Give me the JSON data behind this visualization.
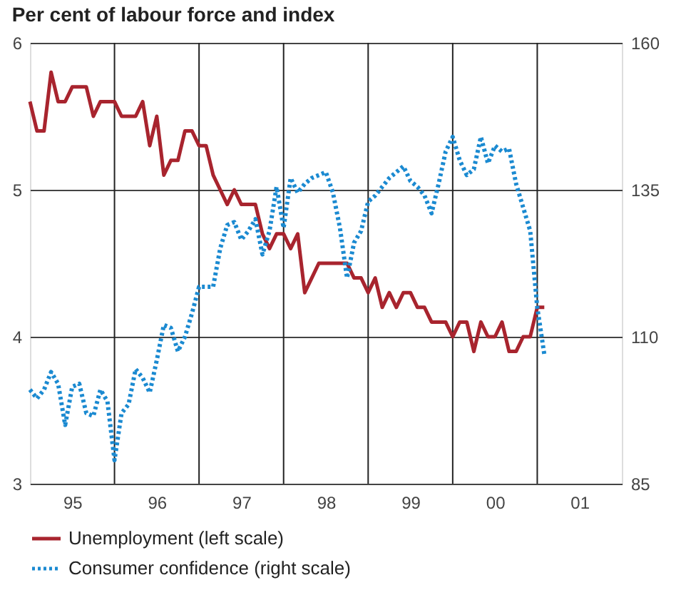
{
  "chart_data": {
    "type": "line",
    "title": "Per cent of labour force and index",
    "xlim": [
      "1995-01",
      "2002-01"
    ],
    "xticks": [
      {
        "value": "1995-07",
        "label": "95"
      },
      {
        "value": "1996-01",
        "label": null
      },
      {
        "value": "1996-07",
        "label": "96"
      },
      {
        "value": "1997-01",
        "label": null
      },
      {
        "value": "1997-07",
        "label": "97"
      },
      {
        "value": "1998-01",
        "label": null
      },
      {
        "value": "1998-07",
        "label": "98"
      },
      {
        "value": "1999-01",
        "label": null
      },
      {
        "value": "1999-07",
        "label": "99"
      },
      {
        "value": "2000-01",
        "label": null
      },
      {
        "value": "2000-07",
        "label": "00"
      },
      {
        "value": "2001-01",
        "label": null
      },
      {
        "value": "2001-07",
        "label": "01"
      }
    ],
    "ylim": [
      3,
      6
    ],
    "yticks": [
      3,
      4,
      5,
      6
    ],
    "y2lim": [
      85,
      160
    ],
    "y2ticks": [
      85,
      110,
      135,
      160
    ],
    "grid": true,
    "legend": "bottom",
    "marker": "none",
    "x": [
      "1995-01",
      "1995-02",
      "1995-03",
      "1995-04",
      "1995-05",
      "1995-06",
      "1995-07",
      "1995-08",
      "1995-09",
      "1995-10",
      "1995-11",
      "1995-12",
      "1996-01",
      "1996-02",
      "1996-03",
      "1996-04",
      "1996-05",
      "1996-06",
      "1996-07",
      "1996-08",
      "1996-09",
      "1996-10",
      "1996-11",
      "1996-12",
      "1997-01",
      "1997-02",
      "1997-03",
      "1997-04",
      "1997-05",
      "1997-06",
      "1997-07",
      "1997-08",
      "1997-09",
      "1997-10",
      "1997-11",
      "1997-12",
      "1998-01",
      "1998-02",
      "1998-03",
      "1998-04",
      "1998-05",
      "1998-06",
      "1998-07",
      "1998-08",
      "1998-09",
      "1998-10",
      "1998-11",
      "1998-12",
      "1999-01",
      "1999-02",
      "1999-03",
      "1999-04",
      "1999-05",
      "1999-06",
      "1999-07",
      "1999-08",
      "1999-09",
      "1999-10",
      "1999-11",
      "1999-12",
      "2000-01",
      "2000-02",
      "2000-03",
      "2000-04",
      "2000-05",
      "2000-06",
      "2000-07",
      "2000-08",
      "2000-09",
      "2000-10",
      "2000-11",
      "2000-12",
      "2001-01",
      "2001-02"
    ],
    "series": [
      {
        "name": "Unemployment (left scale)",
        "color": "#a8242e",
        "line_style": "solid",
        "values": [
          5.6,
          5.4,
          5.4,
          5.8,
          5.6,
          5.6,
          5.7,
          5.7,
          5.7,
          5.5,
          5.6,
          5.6,
          5.6,
          5.5,
          5.5,
          5.5,
          5.6,
          5.3,
          5.5,
          5.1,
          5.2,
          5.2,
          5.4,
          5.4,
          5.3,
          5.3,
          5.1,
          5.0,
          4.9,
          5.0,
          4.9,
          4.9,
          4.9,
          4.7,
          4.6,
          4.7,
          4.7,
          4.6,
          4.7,
          4.3,
          4.4,
          4.5,
          4.5,
          4.5,
          4.5,
          4.5,
          4.4,
          4.4,
          4.3,
          4.4,
          4.2,
          4.3,
          4.2,
          4.3,
          4.3,
          4.2,
          4.2,
          4.1,
          4.1,
          4.1,
          4.0,
          4.1,
          4.1,
          3.9,
          4.1,
          4.0,
          4.0,
          4.1,
          3.9,
          3.9,
          4.0,
          4.0,
          4.2,
          4.2
        ]
      },
      {
        "name": "Consumer confidence (right scale)",
        "color": "#1b8ad1",
        "line_style": "dotted",
        "axis": "y2",
        "values": [
          101,
          99.5,
          101,
          104,
          102,
          95,
          101.5,
          102,
          97,
          96.5,
          101,
          99,
          89,
          97,
          98.5,
          104.5,
          103,
          100.5,
          106,
          112,
          111.5,
          107.5,
          110,
          114,
          118.5,
          118.5,
          118.5,
          125,
          129,
          129.5,
          126.5,
          128,
          130,
          124,
          128,
          135.5,
          128.5,
          137,
          134.5,
          136,
          137,
          137.5,
          138,
          134.5,
          128.5,
          120,
          126,
          128,
          133,
          134,
          135.5,
          137,
          138,
          139,
          136.5,
          135.5,
          134,
          131,
          136,
          141.5,
          144,
          140,
          137.5,
          138.5,
          144,
          139.5,
          142.5,
          141.5,
          142,
          136,
          132,
          128,
          115,
          107
        ]
      }
    ]
  }
}
